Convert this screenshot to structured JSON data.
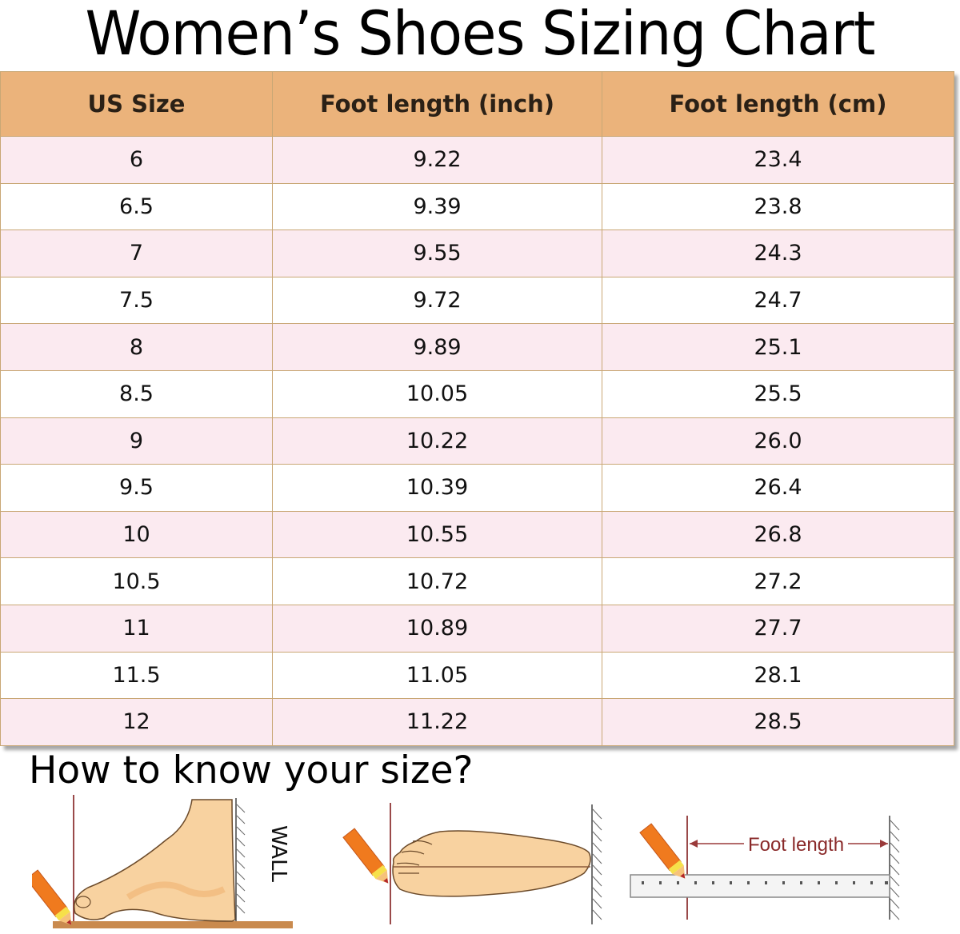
{
  "title": "Women’s Shoes Sizing Chart",
  "table": {
    "headers": [
      "US Size",
      "Foot length (inch)",
      "Foot length (cm)"
    ],
    "rows": [
      [
        "6",
        "9.22",
        "23.4"
      ],
      [
        "6.5",
        "9.39",
        "23.8"
      ],
      [
        "7",
        "9.55",
        "24.3"
      ],
      [
        "7.5",
        "9.72",
        "24.7"
      ],
      [
        "8",
        "9.89",
        "25.1"
      ],
      [
        "8.5",
        "10.05",
        "25.5"
      ],
      [
        "9",
        "10.22",
        "26.0"
      ],
      [
        "9.5",
        "10.39",
        "26.4"
      ],
      [
        "10",
        "10.55",
        "26.8"
      ],
      [
        "10.5",
        "10.72",
        "27.2"
      ],
      [
        "11",
        "10.89",
        "27.7"
      ],
      [
        "11.5",
        "11.05",
        "28.1"
      ],
      [
        "12",
        "11.22",
        "28.5"
      ]
    ]
  },
  "how_to": {
    "heading": "How to know your size?",
    "wall_label": "WALL",
    "foot_length_label": "Foot length"
  },
  "colors": {
    "header_bg": "#ebb37b",
    "row_pink": "#fbeaf0",
    "row_white": "#ffffff",
    "grid_line": "#c9a775",
    "skin": "#f8d2a0",
    "pencil": "#f07a1e"
  }
}
